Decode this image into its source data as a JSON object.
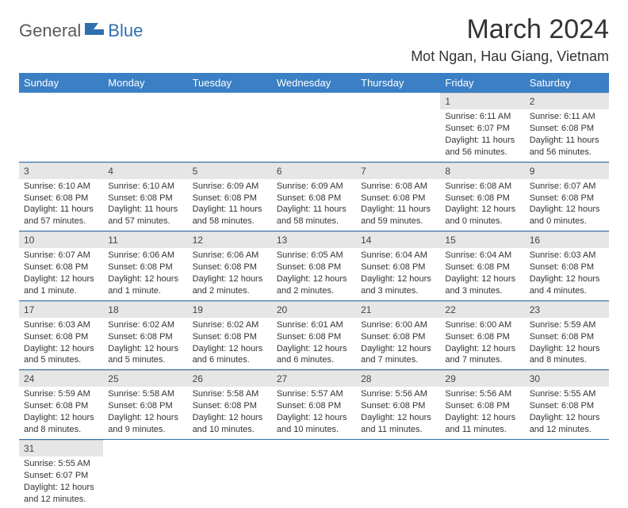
{
  "logo": {
    "text1": "General",
    "text2": "Blue"
  },
  "title": "March 2024",
  "location": "Mot Ngan, Hau Giang, Vietnam",
  "colors": {
    "header_bg": "#3b7fc4",
    "header_text": "#ffffff",
    "daynum_bg": "#e6e6e6",
    "row_border": "#2f6fb0",
    "logo_blue": "#2f6fb0",
    "logo_gray": "#5a5a5a"
  },
  "day_headers": [
    "Sunday",
    "Monday",
    "Tuesday",
    "Wednesday",
    "Thursday",
    "Friday",
    "Saturday"
  ],
  "weeks": [
    [
      {
        "n": "",
        "sr": "",
        "ss": "",
        "dl": ""
      },
      {
        "n": "",
        "sr": "",
        "ss": "",
        "dl": ""
      },
      {
        "n": "",
        "sr": "",
        "ss": "",
        "dl": ""
      },
      {
        "n": "",
        "sr": "",
        "ss": "",
        "dl": ""
      },
      {
        "n": "",
        "sr": "",
        "ss": "",
        "dl": ""
      },
      {
        "n": "1",
        "sr": "Sunrise: 6:11 AM",
        "ss": "Sunset: 6:07 PM",
        "dl": "Daylight: 11 hours and 56 minutes."
      },
      {
        "n": "2",
        "sr": "Sunrise: 6:11 AM",
        "ss": "Sunset: 6:08 PM",
        "dl": "Daylight: 11 hours and 56 minutes."
      }
    ],
    [
      {
        "n": "3",
        "sr": "Sunrise: 6:10 AM",
        "ss": "Sunset: 6:08 PM",
        "dl": "Daylight: 11 hours and 57 minutes."
      },
      {
        "n": "4",
        "sr": "Sunrise: 6:10 AM",
        "ss": "Sunset: 6:08 PM",
        "dl": "Daylight: 11 hours and 57 minutes."
      },
      {
        "n": "5",
        "sr": "Sunrise: 6:09 AM",
        "ss": "Sunset: 6:08 PM",
        "dl": "Daylight: 11 hours and 58 minutes."
      },
      {
        "n": "6",
        "sr": "Sunrise: 6:09 AM",
        "ss": "Sunset: 6:08 PM",
        "dl": "Daylight: 11 hours and 58 minutes."
      },
      {
        "n": "7",
        "sr": "Sunrise: 6:08 AM",
        "ss": "Sunset: 6:08 PM",
        "dl": "Daylight: 11 hours and 59 minutes."
      },
      {
        "n": "8",
        "sr": "Sunrise: 6:08 AM",
        "ss": "Sunset: 6:08 PM",
        "dl": "Daylight: 12 hours and 0 minutes."
      },
      {
        "n": "9",
        "sr": "Sunrise: 6:07 AM",
        "ss": "Sunset: 6:08 PM",
        "dl": "Daylight: 12 hours and 0 minutes."
      }
    ],
    [
      {
        "n": "10",
        "sr": "Sunrise: 6:07 AM",
        "ss": "Sunset: 6:08 PM",
        "dl": "Daylight: 12 hours and 1 minute."
      },
      {
        "n": "11",
        "sr": "Sunrise: 6:06 AM",
        "ss": "Sunset: 6:08 PM",
        "dl": "Daylight: 12 hours and 1 minute."
      },
      {
        "n": "12",
        "sr": "Sunrise: 6:06 AM",
        "ss": "Sunset: 6:08 PM",
        "dl": "Daylight: 12 hours and 2 minutes."
      },
      {
        "n": "13",
        "sr": "Sunrise: 6:05 AM",
        "ss": "Sunset: 6:08 PM",
        "dl": "Daylight: 12 hours and 2 minutes."
      },
      {
        "n": "14",
        "sr": "Sunrise: 6:04 AM",
        "ss": "Sunset: 6:08 PM",
        "dl": "Daylight: 12 hours and 3 minutes."
      },
      {
        "n": "15",
        "sr": "Sunrise: 6:04 AM",
        "ss": "Sunset: 6:08 PM",
        "dl": "Daylight: 12 hours and 3 minutes."
      },
      {
        "n": "16",
        "sr": "Sunrise: 6:03 AM",
        "ss": "Sunset: 6:08 PM",
        "dl": "Daylight: 12 hours and 4 minutes."
      }
    ],
    [
      {
        "n": "17",
        "sr": "Sunrise: 6:03 AM",
        "ss": "Sunset: 6:08 PM",
        "dl": "Daylight: 12 hours and 5 minutes."
      },
      {
        "n": "18",
        "sr": "Sunrise: 6:02 AM",
        "ss": "Sunset: 6:08 PM",
        "dl": "Daylight: 12 hours and 5 minutes."
      },
      {
        "n": "19",
        "sr": "Sunrise: 6:02 AM",
        "ss": "Sunset: 6:08 PM",
        "dl": "Daylight: 12 hours and 6 minutes."
      },
      {
        "n": "20",
        "sr": "Sunrise: 6:01 AM",
        "ss": "Sunset: 6:08 PM",
        "dl": "Daylight: 12 hours and 6 minutes."
      },
      {
        "n": "21",
        "sr": "Sunrise: 6:00 AM",
        "ss": "Sunset: 6:08 PM",
        "dl": "Daylight: 12 hours and 7 minutes."
      },
      {
        "n": "22",
        "sr": "Sunrise: 6:00 AM",
        "ss": "Sunset: 6:08 PM",
        "dl": "Daylight: 12 hours and 7 minutes."
      },
      {
        "n": "23",
        "sr": "Sunrise: 5:59 AM",
        "ss": "Sunset: 6:08 PM",
        "dl": "Daylight: 12 hours and 8 minutes."
      }
    ],
    [
      {
        "n": "24",
        "sr": "Sunrise: 5:59 AM",
        "ss": "Sunset: 6:08 PM",
        "dl": "Daylight: 12 hours and 8 minutes."
      },
      {
        "n": "25",
        "sr": "Sunrise: 5:58 AM",
        "ss": "Sunset: 6:08 PM",
        "dl": "Daylight: 12 hours and 9 minutes."
      },
      {
        "n": "26",
        "sr": "Sunrise: 5:58 AM",
        "ss": "Sunset: 6:08 PM",
        "dl": "Daylight: 12 hours and 10 minutes."
      },
      {
        "n": "27",
        "sr": "Sunrise: 5:57 AM",
        "ss": "Sunset: 6:08 PM",
        "dl": "Daylight: 12 hours and 10 minutes."
      },
      {
        "n": "28",
        "sr": "Sunrise: 5:56 AM",
        "ss": "Sunset: 6:08 PM",
        "dl": "Daylight: 12 hours and 11 minutes."
      },
      {
        "n": "29",
        "sr": "Sunrise: 5:56 AM",
        "ss": "Sunset: 6:08 PM",
        "dl": "Daylight: 12 hours and 11 minutes."
      },
      {
        "n": "30",
        "sr": "Sunrise: 5:55 AM",
        "ss": "Sunset: 6:08 PM",
        "dl": "Daylight: 12 hours and 12 minutes."
      }
    ],
    [
      {
        "n": "31",
        "sr": "Sunrise: 5:55 AM",
        "ss": "Sunset: 6:07 PM",
        "dl": "Daylight: 12 hours and 12 minutes."
      },
      {
        "n": "",
        "sr": "",
        "ss": "",
        "dl": ""
      },
      {
        "n": "",
        "sr": "",
        "ss": "",
        "dl": ""
      },
      {
        "n": "",
        "sr": "",
        "ss": "",
        "dl": ""
      },
      {
        "n": "",
        "sr": "",
        "ss": "",
        "dl": ""
      },
      {
        "n": "",
        "sr": "",
        "ss": "",
        "dl": ""
      },
      {
        "n": "",
        "sr": "",
        "ss": "",
        "dl": ""
      }
    ]
  ]
}
